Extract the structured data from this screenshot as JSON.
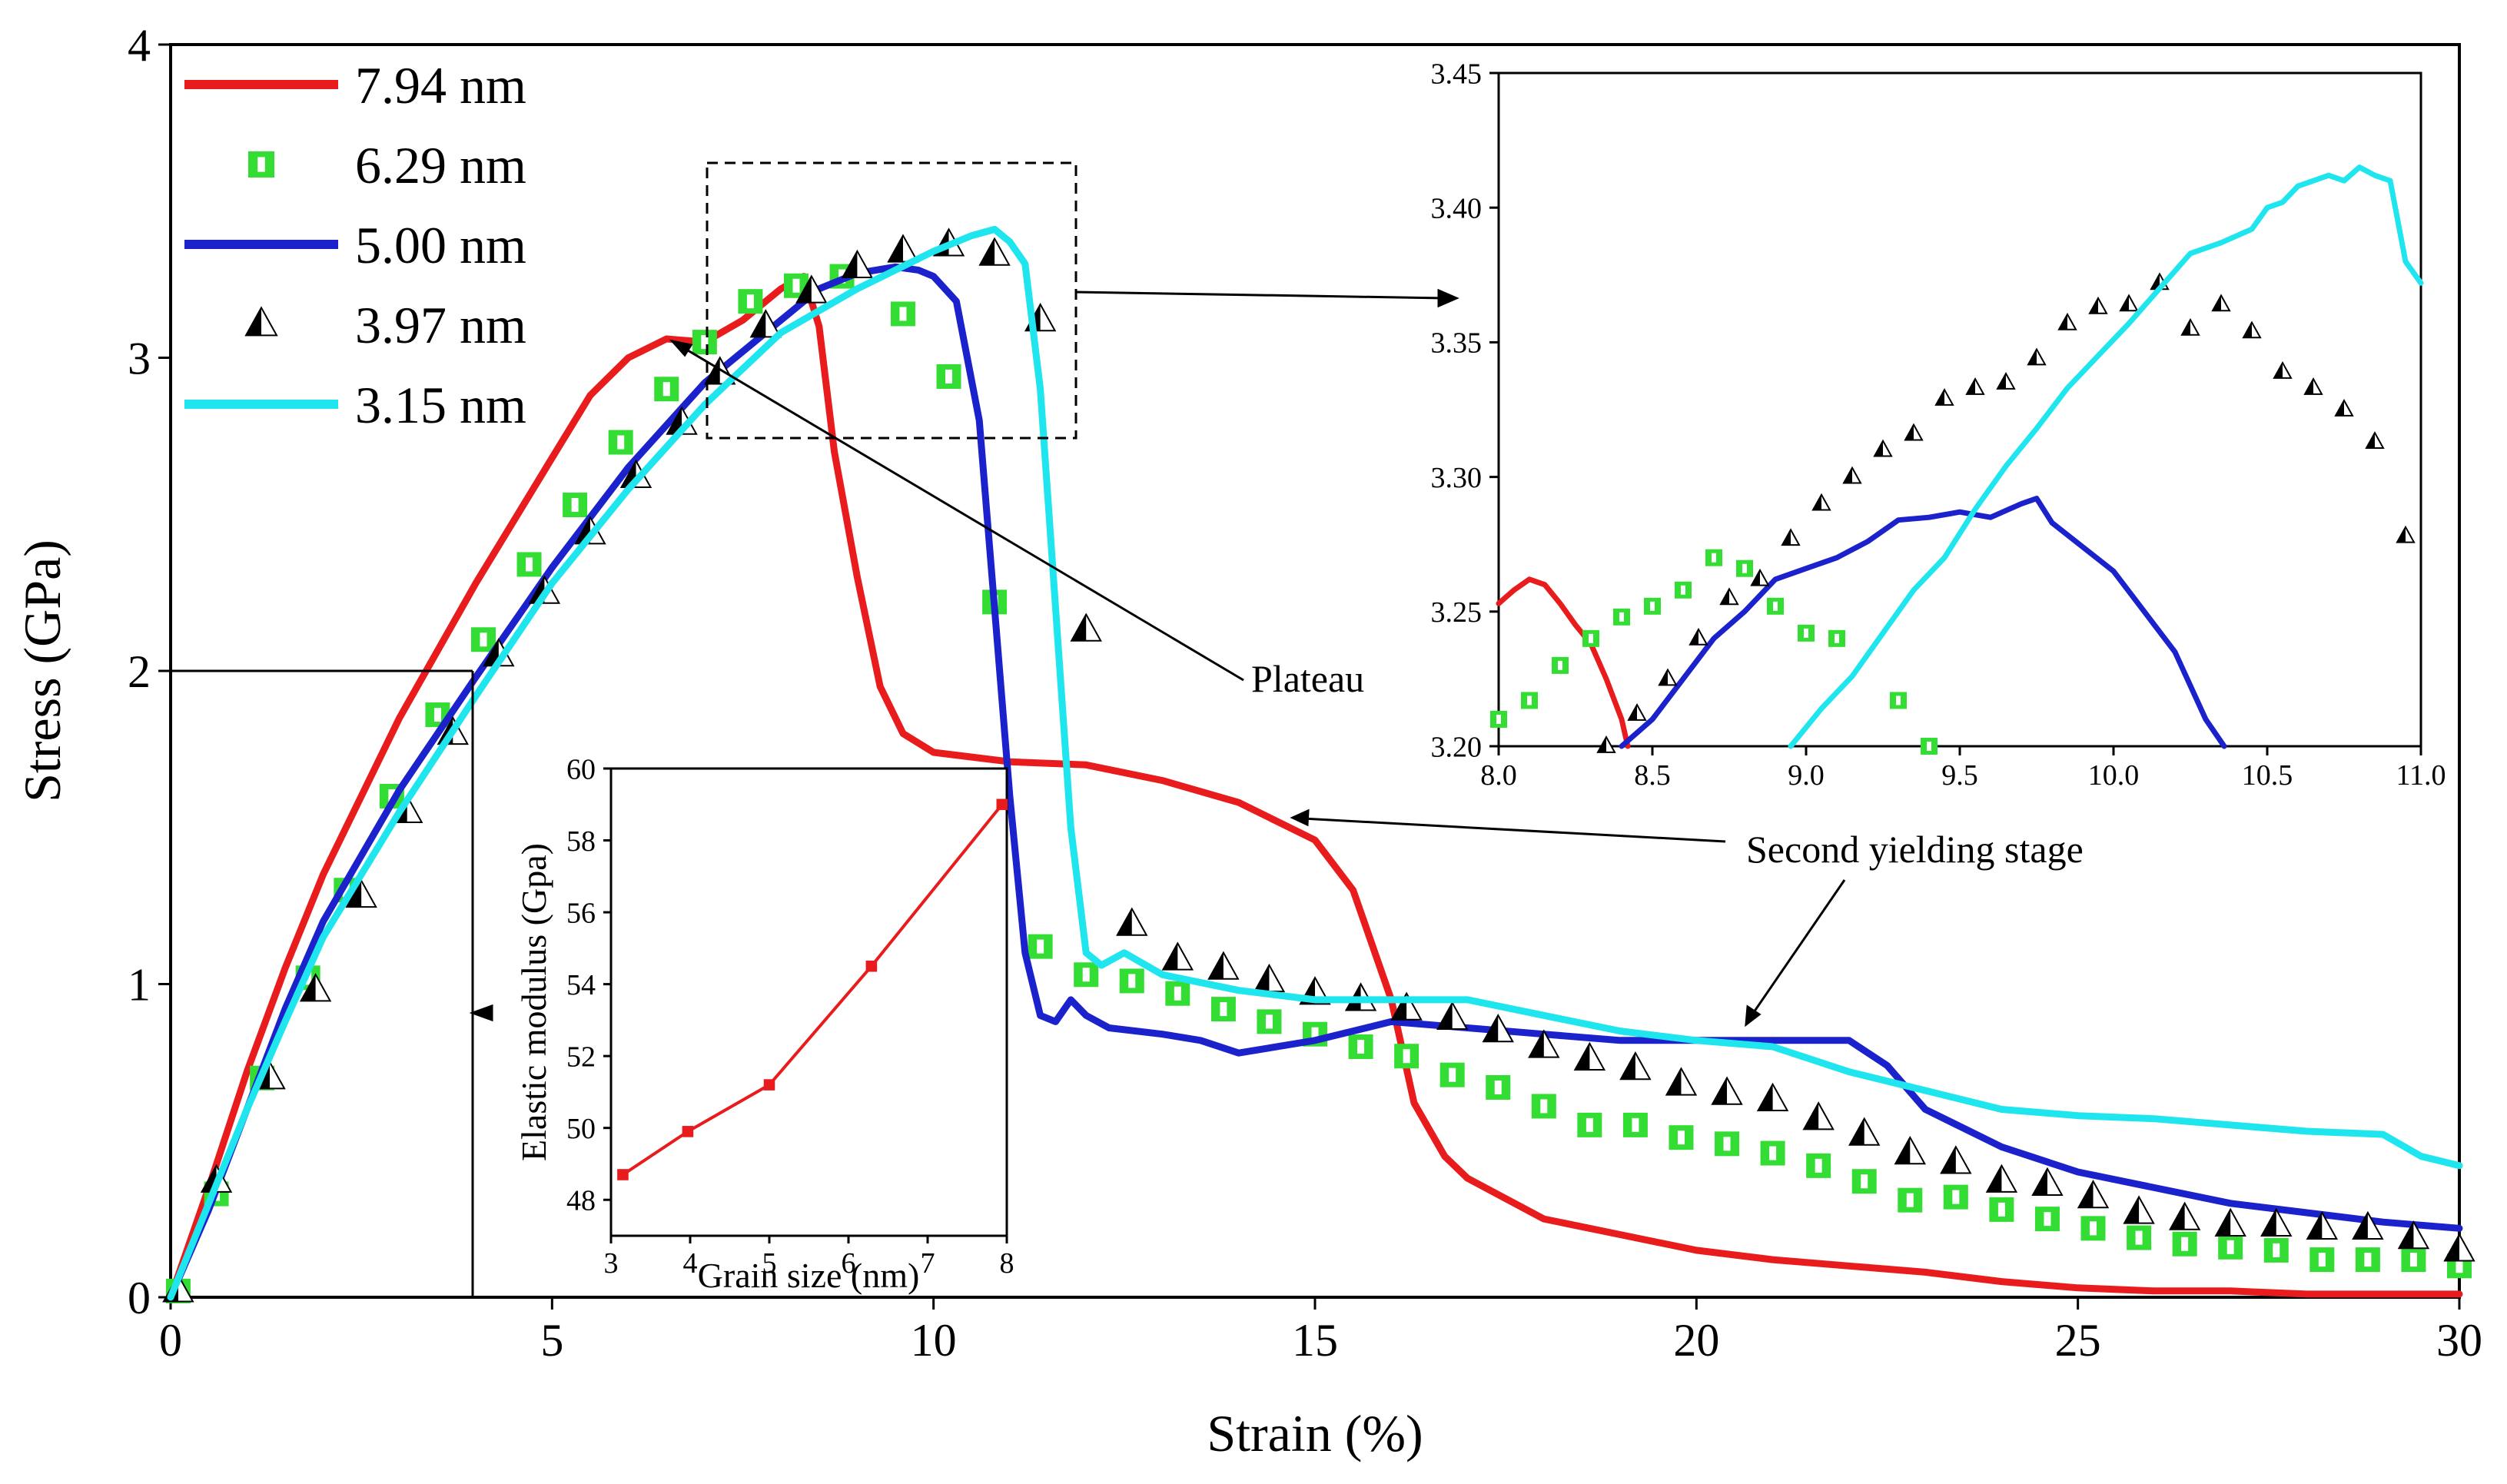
{
  "chart_data": [
    {
      "id": "main",
      "type": "line",
      "title": "",
      "xlabel": "Strain (%)",
      "ylabel": "Stress (GPa)",
      "xlim": [
        0,
        30
      ],
      "ylim": [
        0,
        4
      ],
      "xticks": [
        0,
        5,
        10,
        15,
        20,
        25,
        30
      ],
      "yticks": [
        0,
        1,
        2,
        3,
        4
      ],
      "legend_position": "top-left",
      "series": [
        {
          "name": "7.94 nm",
          "style": "line",
          "color": "#e81c1c",
          "x": [
            0,
            0.5,
            1,
            1.5,
            2,
            3,
            4,
            5,
            5.5,
            6,
            6.5,
            7,
            7.5,
            8,
            8.3,
            8.5,
            8.7,
            9,
            9.3,
            9.6,
            10,
            11,
            12,
            13,
            14,
            15,
            15.5,
            16,
            16.3,
            16.7,
            17,
            18,
            19,
            20,
            21,
            22,
            23,
            24,
            25,
            26,
            27,
            28,
            29,
            30
          ],
          "y": [
            0,
            0.35,
            0.72,
            1.05,
            1.35,
            1.85,
            2.28,
            2.68,
            2.88,
            3.0,
            3.06,
            3.05,
            3.12,
            3.22,
            3.26,
            3.1,
            2.7,
            2.3,
            1.95,
            1.8,
            1.74,
            1.71,
            1.7,
            1.65,
            1.58,
            1.46,
            1.3,
            0.95,
            0.62,
            0.45,
            0.38,
            0.25,
            0.2,
            0.15,
            0.12,
            0.1,
            0.08,
            0.05,
            0.03,
            0.02,
            0.02,
            0.01,
            0.01,
            0.01
          ]
        },
        {
          "name": "6.29 nm",
          "style": "marker-square",
          "color": "#33dd33",
          "x": [
            0.1,
            0.6,
            1.2,
            1.8,
            2.3,
            2.9,
            3.5,
            4.1,
            4.7,
            5.3,
            5.9,
            6.5,
            7.0,
            7.6,
            8.2,
            8.8,
            9.6,
            10.2,
            10.8,
            11.4,
            12.0,
            12.6,
            13.2,
            13.8,
            14.4,
            15.0,
            15.6,
            16.2,
            16.8,
            17.4,
            18.0,
            18.6,
            19.2,
            19.8,
            20.4,
            21.0,
            21.6,
            22.2,
            22.8,
            23.4,
            24.0,
            24.6,
            25.2,
            25.8,
            26.4,
            27.0,
            27.6,
            28.2,
            28.8,
            29.4,
            30.0
          ],
          "y": [
            0.02,
            0.33,
            0.7,
            1.02,
            1.3,
            1.6,
            1.86,
            2.1,
            2.34,
            2.53,
            2.73,
            2.9,
            3.05,
            3.18,
            3.23,
            3.26,
            3.14,
            2.94,
            2.22,
            1.12,
            1.03,
            1.01,
            0.97,
            0.92,
            0.88,
            0.84,
            0.8,
            0.77,
            0.71,
            0.67,
            0.61,
            0.55,
            0.55,
            0.51,
            0.49,
            0.46,
            0.42,
            0.37,
            0.31,
            0.32,
            0.28,
            0.25,
            0.22,
            0.19,
            0.17,
            0.16,
            0.15,
            0.12,
            0.12,
            0.12,
            0.1
          ]
        },
        {
          "name": "5.00 nm",
          "style": "line",
          "color": "#1b22cc",
          "x": [
            0,
            0.5,
            1,
            1.5,
            2,
            3,
            4,
            5,
            6,
            7,
            8,
            8.5,
            9,
            9.5,
            9.8,
            10,
            10.3,
            10.6,
            10.8,
            11,
            11.2,
            11.4,
            11.6,
            11.8,
            12,
            12.3,
            13,
            13.5,
            14,
            15,
            16,
            17,
            18,
            19,
            20,
            21,
            22,
            22.5,
            23,
            24,
            25,
            26,
            27,
            28,
            29,
            30
          ],
          "y": [
            0,
            0.28,
            0.6,
            0.92,
            1.2,
            1.62,
            1.98,
            2.33,
            2.65,
            2.92,
            3.12,
            3.22,
            3.27,
            3.29,
            3.28,
            3.26,
            3.18,
            2.8,
            2.2,
            1.6,
            1.1,
            0.9,
            0.88,
            0.95,
            0.9,
            0.86,
            0.84,
            0.82,
            0.78,
            0.82,
            0.88,
            0.86,
            0.84,
            0.82,
            0.82,
            0.82,
            0.82,
            0.74,
            0.6,
            0.48,
            0.4,
            0.35,
            0.3,
            0.27,
            0.24,
            0.22
          ]
        },
        {
          "name": "3.97 nm",
          "style": "marker-triangle",
          "color": "#000000",
          "x": [
            0.1,
            0.6,
            1.3,
            1.9,
            2.5,
            3.1,
            3.7,
            4.3,
            4.9,
            5.5,
            6.1,
            6.7,
            7.2,
            7.8,
            8.4,
            9.0,
            9.6,
            10.2,
            10.8,
            11.4,
            12.0,
            12.6,
            13.2,
            13.8,
            14.4,
            15.0,
            15.6,
            16.2,
            16.8,
            17.4,
            18.0,
            18.6,
            19.2,
            19.8,
            20.4,
            21.0,
            21.6,
            22.2,
            22.8,
            23.4,
            24.0,
            24.6,
            25.2,
            25.8,
            26.4,
            27.0,
            27.6,
            28.2,
            28.8,
            29.4,
            30.0
          ],
          "y": [
            0.02,
            0.37,
            0.7,
            0.98,
            1.28,
            1.55,
            1.8,
            2.05,
            2.25,
            2.44,
            2.62,
            2.79,
            2.95,
            3.1,
            3.21,
            3.29,
            3.34,
            3.36,
            3.33,
            3.12,
            2.13,
            1.19,
            1.08,
            1.05,
            1.01,
            0.97,
            0.95,
            0.92,
            0.89,
            0.85,
            0.8,
            0.76,
            0.73,
            0.68,
            0.65,
            0.63,
            0.57,
            0.52,
            0.46,
            0.43,
            0.37,
            0.36,
            0.32,
            0.27,
            0.25,
            0.23,
            0.23,
            0.22,
            0.22,
            0.19,
            0.15
          ]
        },
        {
          "name": "3.15 nm",
          "style": "line",
          "color": "#1ee5ee",
          "x": [
            0,
            0.5,
            1,
            1.5,
            2,
            3,
            4,
            5,
            6,
            7,
            8,
            9,
            10,
            10.5,
            10.8,
            11,
            11.2,
            11.4,
            11.6,
            11.8,
            12,
            12.2,
            12.5,
            13,
            14,
            15,
            16,
            17,
            18,
            19,
            20,
            21,
            22,
            23,
            24,
            25,
            26,
            27,
            28,
            29,
            29.5,
            30
          ],
          "y": [
            0,
            0.3,
            0.6,
            0.88,
            1.15,
            1.55,
            1.92,
            2.28,
            2.58,
            2.85,
            3.08,
            3.22,
            3.34,
            3.39,
            3.41,
            3.37,
            3.3,
            2.9,
            2.2,
            1.5,
            1.1,
            1.06,
            1.1,
            1.03,
            0.98,
            0.95,
            0.95,
            0.95,
            0.9,
            0.85,
            0.82,
            0.8,
            0.72,
            0.66,
            0.6,
            0.58,
            0.57,
            0.55,
            0.53,
            0.52,
            0.45,
            0.42
          ]
        }
      ]
    },
    {
      "id": "zoom-inset",
      "type": "line",
      "xlim": [
        8.0,
        11.0
      ],
      "ylim": [
        3.2,
        3.45
      ],
      "xticks": [
        8.0,
        8.5,
        9.0,
        9.5,
        10.0,
        10.5,
        11.0
      ],
      "xticklabels": [
        "8.0",
        "8.5",
        "9.0",
        "9.5",
        "10.0",
        "10.5",
        "11.0"
      ],
      "yticks": [
        3.2,
        3.25,
        3.3,
        3.35,
        3.4,
        3.45
      ],
      "yticklabels": [
        "3.20",
        "3.25",
        "3.30",
        "3.35",
        "3.40",
        "3.45"
      ],
      "series": [
        {
          "name": "7.94 nm",
          "style": "line",
          "color": "#e81c1c",
          "x": [
            8.0,
            8.05,
            8.1,
            8.15,
            8.2,
            8.25,
            8.3,
            8.35,
            8.4,
            8.42
          ],
          "y": [
            3.253,
            3.258,
            3.262,
            3.26,
            3.253,
            3.245,
            3.238,
            3.225,
            3.21,
            3.2
          ]
        },
        {
          "name": "6.29 nm",
          "style": "marker-square",
          "color": "#33dd33",
          "x": [
            8.0,
            8.1,
            8.2,
            8.3,
            8.4,
            8.5,
            8.6,
            8.7,
            8.8,
            8.9,
            9.0,
            9.1,
            9.3,
            9.4
          ],
          "y": [
            3.21,
            3.217,
            3.23,
            3.24,
            3.248,
            3.252,
            3.258,
            3.27,
            3.266,
            3.252,
            3.242,
            3.24,
            3.217,
            3.2
          ]
        },
        {
          "name": "5.00 nm",
          "style": "line",
          "color": "#1b22cc",
          "x": [
            8.4,
            8.5,
            8.6,
            8.7,
            8.8,
            8.9,
            9.0,
            9.1,
            9.2,
            9.3,
            9.4,
            9.5,
            9.6,
            9.7,
            9.75,
            9.8,
            9.9,
            10.0,
            10.1,
            10.2,
            10.3,
            10.36
          ],
          "y": [
            3.2,
            3.21,
            3.225,
            3.24,
            3.25,
            3.262,
            3.266,
            3.27,
            3.276,
            3.284,
            3.285,
            3.287,
            3.285,
            3.29,
            3.292,
            3.283,
            3.274,
            3.265,
            3.25,
            3.235,
            3.21,
            3.2
          ]
        },
        {
          "name": "3.97 nm",
          "style": "marker-triangle",
          "color": "#000000",
          "x": [
            8.35,
            8.45,
            8.55,
            8.65,
            8.75,
            8.85,
            8.95,
            9.05,
            9.15,
            9.25,
            9.35,
            9.45,
            9.55,
            9.65,
            9.75,
            9.85,
            9.95,
            10.05,
            10.15,
            10.25,
            10.35,
            10.45,
            10.55,
            10.65,
            10.75,
            10.85,
            10.95
          ],
          "y": [
            3.2,
            3.212,
            3.225,
            3.24,
            3.255,
            3.262,
            3.277,
            3.29,
            3.3,
            3.31,
            3.316,
            3.329,
            3.333,
            3.335,
            3.344,
            3.357,
            3.363,
            3.364,
            3.372,
            3.355,
            3.364,
            3.354,
            3.339,
            3.333,
            3.325,
            3.313,
            3.278
          ]
        },
        {
          "name": "3.15 nm",
          "style": "line",
          "color": "#1ee5ee",
          "x": [
            8.95,
            9.05,
            9.15,
            9.25,
            9.35,
            9.45,
            9.55,
            9.65,
            9.75,
            9.85,
            9.95,
            10.05,
            10.15,
            10.25,
            10.35,
            10.45,
            10.5,
            10.55,
            10.6,
            10.7,
            10.75,
            10.8,
            10.85,
            10.9,
            10.95,
            11.0
          ],
          "y": [
            3.2,
            3.214,
            3.226,
            3.242,
            3.258,
            3.27,
            3.288,
            3.304,
            3.318,
            3.333,
            3.345,
            3.357,
            3.37,
            3.383,
            3.387,
            3.392,
            3.4,
            3.402,
            3.408,
            3.412,
            3.41,
            3.415,
            3.412,
            3.41,
            3.38,
            3.372
          ]
        }
      ]
    },
    {
      "id": "modulus-inset",
      "type": "line",
      "xlabel": "Grain size (nm)",
      "ylabel": "Elastic modulus (Gpa)",
      "xlim": [
        3,
        8
      ],
      "ylim": [
        47,
        60
      ],
      "xticks": [
        3,
        4,
        5,
        6,
        7,
        8
      ],
      "yticks": [
        48,
        50,
        52,
        54,
        56,
        58,
        60
      ],
      "series": [
        {
          "name": "Elastic modulus",
          "style": "line-square",
          "color": "#e81c1c",
          "x": [
            3.15,
            3.97,
            5.0,
            6.29,
            7.94
          ],
          "y": [
            48.7,
            49.9,
            51.2,
            54.5,
            59.0
          ]
        }
      ]
    }
  ],
  "annotations": {
    "plateau": "Plateau",
    "second_yield": "Second yielding stage"
  }
}
